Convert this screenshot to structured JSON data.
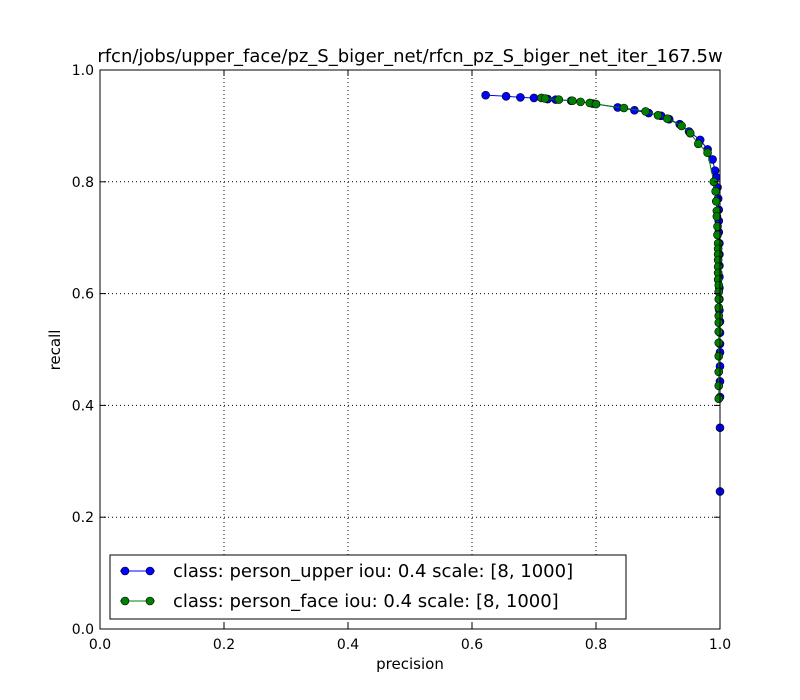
{
  "chart_data": {
    "type": "line",
    "title": "rfcn/jobs/upper_face/pz_S_biger_net/rfcn_pz_S_biger_net_iter_167.5w",
    "xlabel": "precision",
    "ylabel": "recall",
    "xlim": [
      0.0,
      1.0
    ],
    "ylim": [
      0.0,
      1.0
    ],
    "xticks": [
      "0.0",
      "0.2",
      "0.4",
      "0.6",
      "0.8",
      "1.0"
    ],
    "yticks": [
      "0.0",
      "0.2",
      "0.4",
      "0.6",
      "0.8",
      "1.0"
    ],
    "grid": true,
    "legend_position": "bottom-left",
    "series": [
      {
        "name": "class: person_upper iou: 0.4 scale: [8, 1000]",
        "color": "#0000ff",
        "points": [
          [
            0.622,
            0.955
          ],
          [
            0.655,
            0.953
          ],
          [
            0.678,
            0.951
          ],
          [
            0.7,
            0.95
          ],
          [
            0.722,
            0.948
          ],
          [
            0.735,
            0.947
          ],
          [
            0.76,
            0.945
          ],
          [
            0.795,
            0.94
          ],
          [
            0.835,
            0.933
          ],
          [
            0.862,
            0.928
          ],
          [
            0.885,
            0.923
          ],
          [
            0.905,
            0.918
          ],
          [
            0.918,
            0.912
          ],
          [
            0.935,
            0.903
          ],
          [
            0.95,
            0.89
          ],
          [
            0.968,
            0.875
          ],
          [
            0.98,
            0.858
          ],
          [
            0.988,
            0.84
          ],
          [
            0.992,
            0.82
          ],
          [
            0.994,
            0.808
          ],
          [
            0.996,
            0.79
          ],
          [
            0.997,
            0.77
          ],
          [
            0.998,
            0.75
          ],
          [
            0.998,
            0.73
          ],
          [
            0.998,
            0.71
          ],
          [
            0.999,
            0.69
          ],
          [
            0.999,
            0.67
          ],
          [
            0.999,
            0.65
          ],
          [
            0.999,
            0.63
          ],
          [
            0.999,
            0.61
          ],
          [
            0.999,
            0.59
          ],
          [
            0.999,
            0.57
          ],
          [
            1.0,
            0.55
          ],
          [
            1.0,
            0.53
          ],
          [
            1.0,
            0.51
          ],
          [
            1.0,
            0.495
          ],
          [
            1.0,
            0.47
          ],
          [
            1.0,
            0.443
          ],
          [
            1.0,
            0.415
          ],
          [
            1.0,
            0.36
          ],
          [
            1.0,
            0.246
          ]
        ]
      },
      {
        "name": "class: person_face iou: 0.4 scale: [8, 1000]",
        "color": "#008000",
        "points": [
          [
            0.712,
            0.95
          ],
          [
            0.718,
            0.949
          ],
          [
            0.74,
            0.947
          ],
          [
            0.762,
            0.945
          ],
          [
            0.775,
            0.943
          ],
          [
            0.79,
            0.941
          ],
          [
            0.8,
            0.939
          ],
          [
            0.845,
            0.932
          ],
          [
            0.88,
            0.926
          ],
          [
            0.9,
            0.919
          ],
          [
            0.915,
            0.913
          ],
          [
            0.938,
            0.9
          ],
          [
            0.952,
            0.887
          ],
          [
            0.965,
            0.868
          ],
          [
            0.98,
            0.852
          ],
          [
            0.99,
            0.8
          ],
          [
            0.993,
            0.783
          ],
          [
            0.994,
            0.765
          ],
          [
            0.995,
            0.748
          ],
          [
            0.995,
            0.738
          ],
          [
            0.996,
            0.72
          ],
          [
            0.996,
            0.705
          ],
          [
            0.997,
            0.69
          ],
          [
            0.997,
            0.68
          ],
          [
            0.997,
            0.67
          ],
          [
            0.997,
            0.66
          ],
          [
            0.997,
            0.648
          ],
          [
            0.997,
            0.637
          ],
          [
            0.997,
            0.625
          ],
          [
            0.998,
            0.615
          ],
          [
            0.998,
            0.603
          ],
          [
            0.998,
            0.59
          ],
          [
            0.998,
            0.575
          ],
          [
            0.998,
            0.56
          ],
          [
            0.998,
            0.548
          ],
          [
            0.998,
            0.532
          ],
          [
            0.998,
            0.512
          ],
          [
            0.998,
            0.488
          ],
          [
            0.998,
            0.46
          ],
          [
            0.998,
            0.435
          ],
          [
            0.998,
            0.412
          ]
        ]
      }
    ]
  }
}
